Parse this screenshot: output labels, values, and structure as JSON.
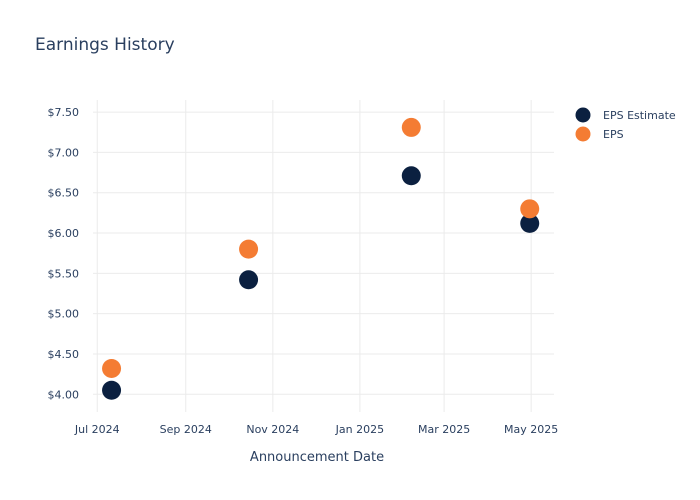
{
  "chart_data": {
    "type": "scatter",
    "title": "Earnings History",
    "xlabel": "Announcement Date",
    "ylabel": "",
    "x_ticks": [
      {
        "date": "2024-07-01",
        "label": "Jul 2024"
      },
      {
        "date": "2024-09-01",
        "label": "Sep 2024"
      },
      {
        "date": "2024-11-01",
        "label": "Nov 2024"
      },
      {
        "date": "2025-01-01",
        "label": "Jan 2025"
      },
      {
        "date": "2025-03-01",
        "label": "Mar 2025"
      },
      {
        "date": "2025-05-01",
        "label": "May 2025"
      }
    ],
    "y_ticks": [
      {
        "value": 4.0,
        "label": "$4.00"
      },
      {
        "value": 4.5,
        "label": "$4.50"
      },
      {
        "value": 5.0,
        "label": "$5.00"
      },
      {
        "value": 5.5,
        "label": "$5.50"
      },
      {
        "value": 6.0,
        "label": "$6.00"
      },
      {
        "value": 6.5,
        "label": "$6.50"
      },
      {
        "value": 7.0,
        "label": "$7.00"
      },
      {
        "value": 7.5,
        "label": "$7.50"
      }
    ],
    "xlim": [
      "2024-06-28",
      "2025-05-17"
    ],
    "ylim": [
      3.78,
      7.65
    ],
    "grid": true,
    "legend_position": "top-right",
    "series": [
      {
        "name": "EPS Estimate",
        "color": "#0b2040",
        "points": [
          {
            "x": "2024-07-11",
            "y": 4.05
          },
          {
            "x": "2024-10-15",
            "y": 5.42
          },
          {
            "x": "2025-02-06",
            "y": 6.71
          },
          {
            "x": "2025-04-30",
            "y": 6.12
          }
        ]
      },
      {
        "name": "EPS",
        "color": "#f47c33",
        "points": [
          {
            "x": "2024-07-11",
            "y": 4.32
          },
          {
            "x": "2024-10-15",
            "y": 5.8
          },
          {
            "x": "2025-02-06",
            "y": 7.31
          },
          {
            "x": "2025-04-30",
            "y": 6.3
          }
        ]
      }
    ]
  }
}
